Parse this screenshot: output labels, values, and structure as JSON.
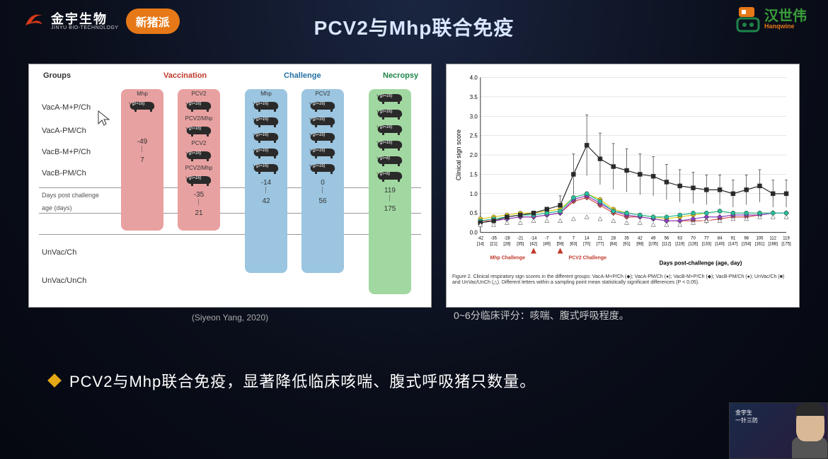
{
  "logos": {
    "jinyu_cn": "金宇生物",
    "jinyu_en": "JINYU BIO-TECHNOLOGY",
    "jinyu_color": "#d93a1a",
    "pill_label": "新猪派",
    "pill_bg": "#e67817",
    "hsw_cn": "汉世伟",
    "hsw_en": "Hanqwine",
    "hsw_icon_color": "#e67817"
  },
  "title": "PCV2与Mhp联合免疫",
  "left_panel": {
    "headers": {
      "groups": "Groups",
      "vaccination": "Vaccination",
      "challenge": "Challenge",
      "necropsy": "Necropsy"
    },
    "group_labels": [
      "VacA-M+P/Ch",
      "VacA-PM/Ch",
      "VacB-M+P/Ch",
      "VacB-PM/Ch"
    ],
    "days_label": "Days post challenge",
    "age_label": "age (days)",
    "unvac_labels": [
      "UnVac/Ch",
      "UnVac/UnCh"
    ],
    "n16": "(n=16)",
    "n8": "(n=8)",
    "col_top_labels": {
      "c1": "Mhp",
      "c2": "PCV2",
      "c2b": "PCV2/Mhp",
      "c3": "Mhp",
      "c4": "PCV2"
    },
    "days": {
      "c1_top": "-49",
      "c1_bot": "7",
      "c2_top": "-35",
      "c2_bot": "21",
      "c3_top": "-14",
      "c3_bot": "42",
      "c4_top": "0",
      "c4_bot": "56",
      "c5_top": "119",
      "c5_bot": "175"
    },
    "citation": "(Siyeon Yang, 2020)",
    "colors": {
      "red": "#e8a1a1",
      "blue": "#9bc5e0",
      "green": "#a1d8a1",
      "pig": "#2a2a2a"
    }
  },
  "right_panel": {
    "chart": {
      "type": "line",
      "ylabel": "Clinical sign score",
      "xlabel": "Days post-challenge (age, day)",
      "ylim": [
        0,
        4.0
      ],
      "yticks": [
        0,
        0.5,
        1.0,
        1.5,
        2.0,
        2.5,
        3.0,
        3.5,
        4.0
      ],
      "x_days": [
        -42,
        -35,
        -28,
        -21,
        -14,
        -7,
        0,
        7,
        14,
        21,
        28,
        35,
        42,
        49,
        56,
        63,
        70,
        77,
        84,
        91,
        98,
        105,
        112,
        119
      ],
      "x_age": [
        14,
        21,
        28,
        35,
        42,
        49,
        56,
        63,
        70,
        77,
        84,
        91,
        98,
        105,
        112,
        119,
        126,
        133,
        140,
        147,
        154,
        161,
        168,
        175
      ],
      "arrows": {
        "mhp_idx": 4,
        "pcv2_idx": 6,
        "mhp_label": "Mhp Challenge",
        "pcv2_label": "PCV2 Challenge",
        "color": "#c0392b"
      },
      "series": [
        {
          "name": "VacA-M+P/Ch",
          "color": "#d94c4c",
          "marker": "diamond",
          "values": [
            0.3,
            0.3,
            0.35,
            0.4,
            0.4,
            0.45,
            0.5,
            0.8,
            0.9,
            0.7,
            0.5,
            0.4,
            0.4,
            0.35,
            0.3,
            0.3,
            0.3,
            0.3,
            0.35,
            0.4,
            0.4,
            0.45,
            0.5,
            0.5
          ]
        },
        {
          "name": "VacA-PM/Ch",
          "color": "#e6c817",
          "marker": "circle",
          "values": [
            0.35,
            0.4,
            0.45,
            0.5,
            0.5,
            0.55,
            0.6,
            0.9,
            1.0,
            0.85,
            0.6,
            0.5,
            0.45,
            0.4,
            0.35,
            0.4,
            0.45,
            0.5,
            0.55,
            0.5,
            0.5,
            0.5,
            0.5,
            0.5
          ]
        },
        {
          "name": "VacB-M+P/Ch",
          "color": "#8f3fc4",
          "marker": "diamond",
          "values": [
            0.25,
            0.3,
            0.35,
            0.4,
            0.4,
            0.45,
            0.5,
            0.85,
            0.95,
            0.75,
            0.55,
            0.45,
            0.4,
            0.35,
            0.3,
            0.3,
            0.35,
            0.4,
            0.4,
            0.45,
            0.45,
            0.45,
            0.5,
            0.5
          ]
        },
        {
          "name": "VacB-PM/Ch",
          "color": "#26c09c",
          "marker": "circle",
          "values": [
            0.3,
            0.35,
            0.4,
            0.45,
            0.45,
            0.5,
            0.55,
            0.9,
            1.0,
            0.8,
            0.55,
            0.5,
            0.45,
            0.4,
            0.4,
            0.45,
            0.5,
            0.5,
            0.55,
            0.5,
            0.5,
            0.5,
            0.5,
            0.5
          ]
        },
        {
          "name": "UnVac/Ch",
          "color": "#2a2a2a",
          "marker": "square",
          "values": [
            0.25,
            0.3,
            0.4,
            0.45,
            0.5,
            0.6,
            0.7,
            1.5,
            2.25,
            1.9,
            1.7,
            1.6,
            1.5,
            1.45,
            1.3,
            1.2,
            1.15,
            1.1,
            1.1,
            1.0,
            1.1,
            1.2,
            1.0,
            1.0
          ]
        },
        {
          "name": "UnVac/UnCh",
          "color": "#ffffff",
          "marker": "triangle",
          "values": [
            0.2,
            0.2,
            0.25,
            0.25,
            0.3,
            0.3,
            0.3,
            0.35,
            0.4,
            0.35,
            0.3,
            0.25,
            0.25,
            0.2,
            0.2,
            0.2,
            0.25,
            0.3,
            0.3,
            0.35,
            0.35,
            0.4,
            0.4,
            0.4
          ]
        }
      ],
      "grid_color": "#cccccc",
      "label_fontsize": 9
    },
    "caption": "Figure 2. Clinical respiratory sign scores in the different groups: VacA-M+P/Ch (◆); VacA-PM/Ch (●); VacB-M+P/Ch (◆); VacB-PM/Ch (●); UnVac/Ch (■) and UnVac/UnCh (△). Different letters within a sampling point mean statistically significant differences (P < 0.05).",
    "note": "0~6分临床评分：咳喘、腹式呼吸程度。"
  },
  "bullet": "PCV2与Mhp联合免疫，显著降低临床咳喘、腹式呼吸猪只数量。",
  "thumb": {
    "line1": "金宇生",
    "line2": "一针三防"
  }
}
